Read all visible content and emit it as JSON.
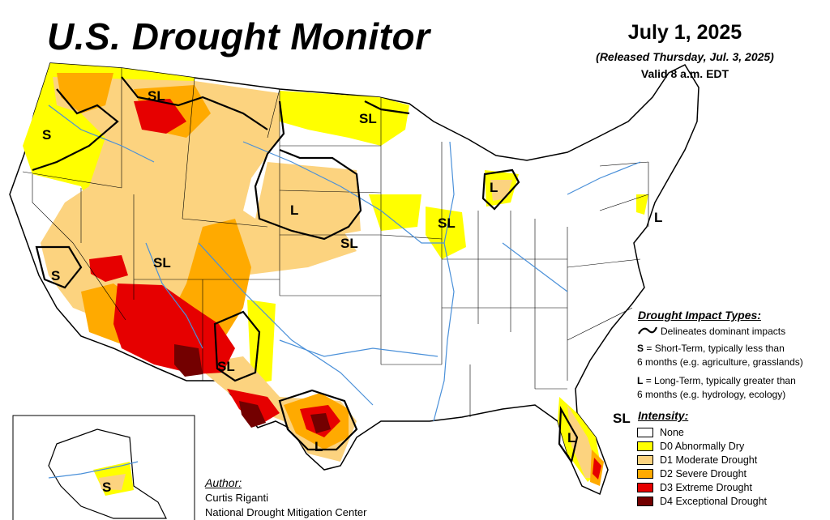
{
  "header": {
    "title": "U.S. Drought Monitor",
    "date": "July 1, 2025",
    "released": "(Released Thursday, Jul. 3, 2025)",
    "valid": "Valid 8 a.m. EDT"
  },
  "impact_legend": {
    "heading": "Drought Impact Types:",
    "delineates": "Delineates dominant impacts",
    "s_code": "S",
    "s_desc_1": "= Short-Term, typically less than",
    "s_desc_2": "6 months (e.g. agriculture, grasslands)",
    "l_code": "L",
    "l_desc_1": "= Long-Term, typically greater than",
    "l_desc_2": "6 months (e.g. hydrology, ecology)"
  },
  "intensity_legend": {
    "heading": "Intensity:",
    "items": [
      {
        "label": "None",
        "color": "#ffffff"
      },
      {
        "label": "D0 Abnormally Dry",
        "color": "#ffff00"
      },
      {
        "label": "D1 Moderate Drought",
        "color": "#fcd37f"
      },
      {
        "label": "D2 Severe Drought",
        "color": "#ffaa00"
      },
      {
        "label": "D3 Extreme Drought",
        "color": "#e60000"
      },
      {
        "label": "D4 Exceptional Drought",
        "color": "#730000"
      }
    ]
  },
  "author": {
    "heading": "Author:",
    "name": "Curtis Riganti",
    "org": "National Drought Mitigation Center"
  },
  "map_labels": [
    {
      "text": "SL",
      "region": "montana"
    },
    {
      "text": "S",
      "region": "oregon"
    },
    {
      "text": "SL",
      "region": "minnesota"
    },
    {
      "text": "L",
      "region": "michigan"
    },
    {
      "text": "L",
      "region": "nebraska"
    },
    {
      "text": "SL",
      "region": "kansas"
    },
    {
      "text": "SL",
      "region": "illinois"
    },
    {
      "text": "L",
      "region": "northeast"
    },
    {
      "text": "SL",
      "region": "great-basin"
    },
    {
      "text": "S",
      "region": "california"
    },
    {
      "text": "SL",
      "region": "new-mexico"
    },
    {
      "text": "L",
      "region": "texas"
    },
    {
      "text": "L",
      "region": "florida"
    },
    {
      "text": "SL",
      "region": "south-florida"
    },
    {
      "text": "S",
      "region": "alaska"
    }
  ]
}
